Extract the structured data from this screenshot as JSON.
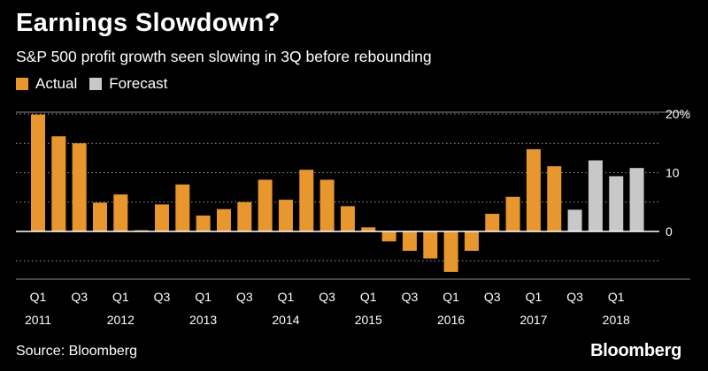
{
  "title": "Earnings Slowdown?",
  "subtitle": "S&P 500 profit growth seen slowing in 3Q before rebounding",
  "source": "Source: Bloomberg",
  "brand": "Bloomberg",
  "legend": [
    {
      "name": "Actual",
      "color": "#e8962e"
    },
    {
      "name": "Forecast",
      "color": "#c8c8c8"
    }
  ],
  "chart_data": {
    "type": "bar",
    "title": "Earnings Slowdown?",
    "subtitle": "S&P 500 profit growth seen slowing in 3Q before rebounding",
    "ylim": [
      -8,
      20
    ],
    "yticks": [
      {
        "value": 20,
        "label": "20%"
      },
      {
        "value": 10,
        "label": "10"
      },
      {
        "value": 0,
        "label": "0"
      }
    ],
    "grid": true,
    "legend_position": "top-left",
    "categories": [
      "2011 Q1",
      "2011 Q2",
      "2011 Q3",
      "2011 Q4",
      "2012 Q1",
      "2012 Q2",
      "2012 Q3",
      "2012 Q4",
      "2013 Q1",
      "2013 Q2",
      "2013 Q3",
      "2013 Q4",
      "2014 Q1",
      "2014 Q2",
      "2014 Q3",
      "2014 Q4",
      "2015 Q1",
      "2015 Q2",
      "2015 Q3",
      "2015 Q4",
      "2016 Q1",
      "2016 Q2",
      "2016 Q3",
      "2016 Q4",
      "2017 Q1",
      "2017 Q2",
      "2017 Q3",
      "2017 Q4",
      "2018 Q1",
      "2018 Q2"
    ],
    "series": [
      {
        "name": "Actual",
        "color": "#e8962e",
        "values": [
          19.9,
          16.2,
          15.0,
          4.9,
          6.3,
          0.2,
          4.6,
          8.0,
          2.7,
          3.8,
          5.0,
          8.8,
          5.4,
          10.5,
          8.8,
          4.3,
          0.7,
          -1.7,
          -3.3,
          -4.6,
          -6.9,
          -3.3,
          3.0,
          5.9,
          14.0,
          11.1,
          null,
          null,
          null,
          null
        ]
      },
      {
        "name": "Forecast",
        "color": "#c8c8c8",
        "values": [
          null,
          null,
          null,
          null,
          null,
          null,
          null,
          null,
          null,
          null,
          null,
          null,
          null,
          null,
          null,
          null,
          null,
          null,
          null,
          null,
          null,
          null,
          null,
          null,
          null,
          null,
          3.7,
          12.1,
          9.4,
          10.8
        ]
      }
    ],
    "x_tick_labels": [
      {
        "index": 0,
        "quarter": "Q1",
        "year": "2011"
      },
      {
        "index": 2,
        "quarter": "Q3",
        "year": ""
      },
      {
        "index": 4,
        "quarter": "Q1",
        "year": "2012"
      },
      {
        "index": 6,
        "quarter": "Q3",
        "year": ""
      },
      {
        "index": 8,
        "quarter": "Q1",
        "year": "2013"
      },
      {
        "index": 10,
        "quarter": "Q3",
        "year": ""
      },
      {
        "index": 12,
        "quarter": "Q1",
        "year": "2014"
      },
      {
        "index": 14,
        "quarter": "Q3",
        "year": ""
      },
      {
        "index": 16,
        "quarter": "Q1",
        "year": "2015"
      },
      {
        "index": 18,
        "quarter": "Q3",
        "year": ""
      },
      {
        "index": 20,
        "quarter": "Q1",
        "year": "2016"
      },
      {
        "index": 22,
        "quarter": "Q3",
        "year": ""
      },
      {
        "index": 24,
        "quarter": "Q1",
        "year": "2017"
      },
      {
        "index": 26,
        "quarter": "Q3",
        "year": ""
      },
      {
        "index": 28,
        "quarter": "Q1",
        "year": "2018"
      }
    ]
  }
}
